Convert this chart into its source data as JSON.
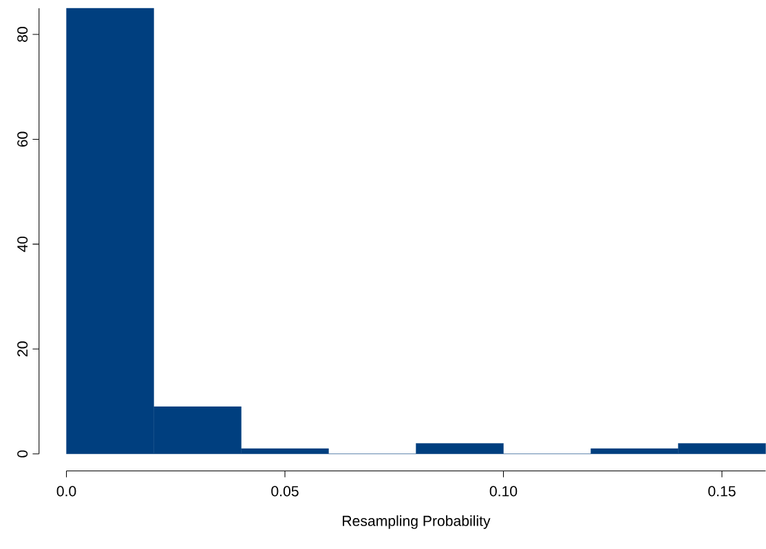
{
  "chart_data": {
    "type": "histogram",
    "xlabel": "Resampling Probability",
    "bins": [
      0,
      0.02,
      0.04,
      0.06,
      0.08,
      0.1,
      0.12,
      0.14,
      0.16
    ],
    "values": [
      85,
      9,
      1,
      0,
      2,
      0,
      1,
      2
    ],
    "color": "#003f7f",
    "xlim": [
      0,
      0.16
    ],
    "ylim": [
      0,
      85
    ],
    "xticks": [
      {
        "value": 0,
        "label": "0.0"
      },
      {
        "value": 0.05,
        "label": "0.05"
      },
      {
        "value": 0.1,
        "label": "0.10"
      },
      {
        "value": 0.15,
        "label": "0.15"
      }
    ],
    "yticks": [
      0,
      20,
      40,
      60,
      80
    ]
  }
}
